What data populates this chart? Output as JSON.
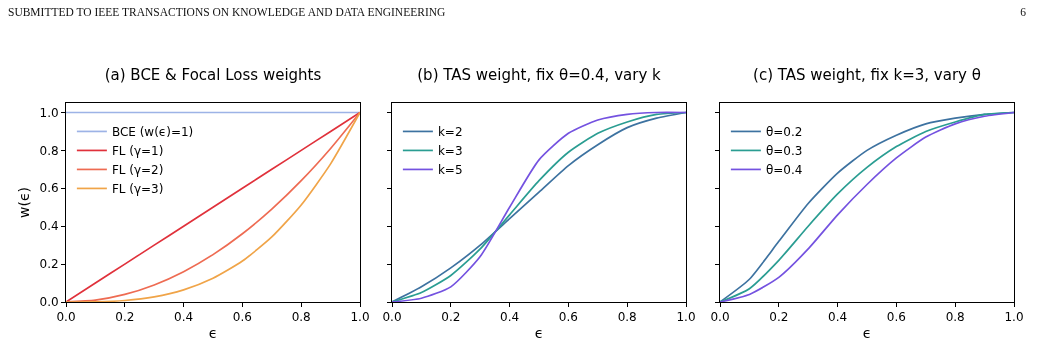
{
  "chart_data": [
    {
      "type": "line",
      "title": "(a) BCE & Focal Loss weights",
      "xlabel": "ϵ",
      "ylabel": "w(ϵ)",
      "annotations": [
        "SUBMITTED TO IEEE TRANSACTIONS ON KNOWLEDGE AND DATA ENGINEERING",
        "6"
      ],
      "x": [
        0,
        0.1,
        0.2,
        0.3,
        0.4,
        0.5,
        0.6,
        0.7,
        0.8,
        0.9,
        1
      ],
      "xlim": [
        0,
        1
      ],
      "ylim": [
        0,
        1.05
      ],
      "xticks": [
        {
          "value": 0,
          "label": "0.0"
        },
        {
          "value": 0.2,
          "label": "0.2"
        },
        {
          "value": 0.4,
          "label": "0.4"
        },
        {
          "value": 0.6,
          "label": "0.6"
        },
        {
          "value": 0.8,
          "label": "0.8"
        },
        {
          "value": 1,
          "label": "1.0"
        }
      ],
      "yticks": [
        {
          "value": 0,
          "label": "0.0"
        },
        {
          "value": 0.2,
          "label": "0.2"
        },
        {
          "value": 0.4,
          "label": "0.4"
        },
        {
          "value": 0.6,
          "label": "0.6"
        },
        {
          "value": 0.8,
          "label": "0.8"
        },
        {
          "value": 1,
          "label": "1.0"
        }
      ],
      "grid": false,
      "legend": "top left",
      "marker": "none",
      "line_style": "solid",
      "series": [
        {
          "name": "BCE (w(ϵ)=1)",
          "color": "#9db3e6",
          "values": [
            1,
            1,
            1,
            1,
            1,
            1,
            1,
            1,
            1,
            1,
            1
          ]
        },
        {
          "name": "FL (γ=1)",
          "color": "#e0313b",
          "values": [
            0,
            0.1,
            0.2,
            0.3,
            0.4,
            0.5,
            0.6,
            0.7,
            0.8,
            0.9,
            1
          ]
        },
        {
          "name": "FL (γ=2)",
          "color": "#ee6b52",
          "values": [
            0,
            0.01,
            0.04,
            0.09,
            0.16,
            0.25,
            0.36,
            0.49,
            0.64,
            0.81,
            1
          ]
        },
        {
          "name": "FL (γ=3)",
          "color": "#f0a448",
          "values": [
            0,
            0.001,
            0.008,
            0.027,
            0.064,
            0.125,
            0.216,
            0.343,
            0.512,
            0.729,
            1
          ]
        }
      ]
    },
    {
      "type": "line",
      "title": "(b) TAS weight, fix θ=0.4, vary k",
      "xlabel": "ϵ",
      "x": [
        0,
        0.1,
        0.2,
        0.3,
        0.4,
        0.5,
        0.6,
        0.7,
        0.8,
        0.9,
        1
      ],
      "xlim": [
        0,
        1
      ],
      "ylim": [
        0,
        1.05
      ],
      "xticks": [
        {
          "value": 0,
          "label": "0.0"
        },
        {
          "value": 0.2,
          "label": "0.2"
        },
        {
          "value": 0.4,
          "label": "0.4"
        },
        {
          "value": 0.6,
          "label": "0.6"
        },
        {
          "value": 0.8,
          "label": "0.8"
        },
        {
          "value": 1,
          "label": "1.0"
        }
      ],
      "yticks": [
        {
          "value": 0,
          "label": null
        },
        {
          "value": 0.2,
          "label": null
        },
        {
          "value": 0.4,
          "label": null
        },
        {
          "value": 0.6,
          "label": null
        },
        {
          "value": 0.8,
          "label": null
        },
        {
          "value": 1,
          "label": null
        }
      ],
      "tick_labels": "x",
      "grid": false,
      "legend": "top left",
      "marker": "none",
      "line_style": "solid",
      "series": [
        {
          "name": "k=2",
          "color": "#3d72a0",
          "values": [
            0,
            0.08,
            0.18,
            0.3,
            0.44,
            0.58,
            0.72,
            0.83,
            0.92,
            0.97,
            1
          ]
        },
        {
          "name": "k=3",
          "color": "#2a9d92",
          "values": [
            0,
            0.05,
            0.14,
            0.28,
            0.46,
            0.64,
            0.79,
            0.89,
            0.95,
            0.99,
            1
          ]
        },
        {
          "name": "k=5",
          "color": "#7452e0",
          "values": [
            0,
            0.02,
            0.08,
            0.24,
            0.5,
            0.75,
            0.89,
            0.96,
            0.99,
            1,
            1
          ]
        }
      ]
    },
    {
      "type": "line",
      "title": "(c) TAS weight, fix k=3, vary θ",
      "xlabel": "ϵ",
      "x": [
        0,
        0.1,
        0.2,
        0.3,
        0.4,
        0.5,
        0.6,
        0.7,
        0.8,
        0.9,
        1
      ],
      "xlim": [
        0,
        1
      ],
      "ylim": [
        0,
        1.05
      ],
      "xticks": [
        {
          "value": 0,
          "label": "0.0"
        },
        {
          "value": 0.2,
          "label": "0.2"
        },
        {
          "value": 0.4,
          "label": "0.4"
        },
        {
          "value": 0.6,
          "label": "0.6"
        },
        {
          "value": 0.8,
          "label": "0.8"
        },
        {
          "value": 1,
          "label": "1.0"
        }
      ],
      "yticks": [
        {
          "value": 0,
          "label": null
        },
        {
          "value": 0.2,
          "label": null
        },
        {
          "value": 0.4,
          "label": null
        },
        {
          "value": 0.6,
          "label": null
        },
        {
          "value": 0.8,
          "label": null
        },
        {
          "value": 1,
          "label": null
        }
      ],
      "tick_labels": "x",
      "grid": false,
      "legend": "top left",
      "marker": "none",
      "line_style": "solid",
      "series": [
        {
          "name": "θ=0.2",
          "color": "#3d72a0",
          "values": [
            0,
            0.12,
            0.32,
            0.52,
            0.68,
            0.8,
            0.88,
            0.94,
            0.97,
            0.99,
            1
          ]
        },
        {
          "name": "θ=0.3",
          "color": "#2a9d92",
          "values": [
            0,
            0.07,
            0.22,
            0.4,
            0.57,
            0.71,
            0.82,
            0.9,
            0.95,
            0.99,
            1
          ]
        },
        {
          "name": "θ=0.4",
          "color": "#7452e0",
          "values": [
            0,
            0.04,
            0.13,
            0.28,
            0.46,
            0.62,
            0.76,
            0.87,
            0.94,
            0.98,
            1
          ]
        }
      ]
    }
  ]
}
